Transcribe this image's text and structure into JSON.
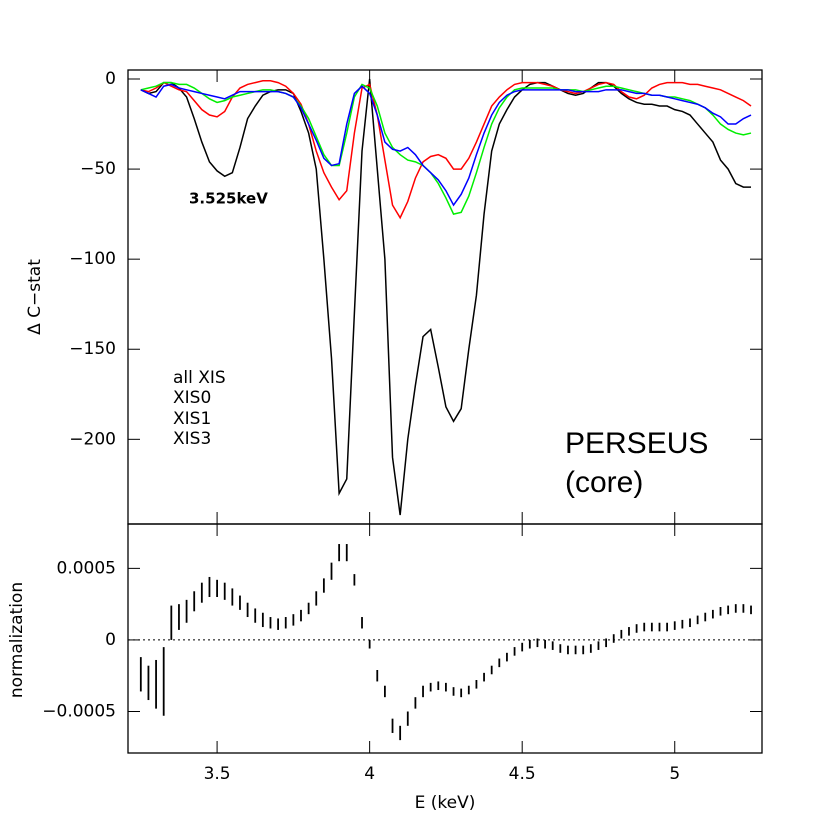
{
  "chart_data": [
    {
      "type": "line",
      "ylabel": "Δ C−stat",
      "annotations": [
        "3.525keV",
        "PERSEUS",
        "(core)"
      ],
      "xlim": [
        3.208,
        5.286
      ],
      "ylim": [
        -247,
        5
      ],
      "xticks": [
        3.5,
        4,
        4.5,
        5
      ],
      "yticks": [
        0,
        {
          "value": -50,
          "label": "−50"
        },
        {
          "value": -100,
          "label": "−100"
        },
        {
          "value": -150,
          "label": "−150"
        },
        {
          "value": -200,
          "label": "−200"
        }
      ],
      "legend": "lower left",
      "x": [
        3.25,
        3.275,
        3.3,
        3.325,
        3.35,
        3.375,
        3.4,
        3.425,
        3.45,
        3.475,
        3.5,
        3.525,
        3.55,
        3.575,
        3.6,
        3.625,
        3.65,
        3.675,
        3.7,
        3.725,
        3.75,
        3.775,
        3.8,
        3.825,
        3.85,
        3.875,
        3.9,
        3.925,
        3.95,
        3.975,
        4,
        4.025,
        4.05,
        4.075,
        4.1,
        4.125,
        4.15,
        4.175,
        4.2,
        4.225,
        4.25,
        4.275,
        4.3,
        4.325,
        4.35,
        4.375,
        4.4,
        4.425,
        4.45,
        4.475,
        4.5,
        4.525,
        4.55,
        4.575,
        4.6,
        4.625,
        4.65,
        4.675,
        4.7,
        4.725,
        4.75,
        4.775,
        4.8,
        4.825,
        4.85,
        4.875,
        4.9,
        4.925,
        4.95,
        4.975,
        5,
        5.025,
        5.05,
        5.075,
        5.1,
        5.125,
        5.15,
        5.175,
        5.2,
        5.225,
        5.25
      ],
      "series": [
        {
          "name": "all XIS",
          "color": "#000000",
          "values": [
            -6,
            -8,
            -7,
            -2,
            -2,
            -5,
            -10,
            -22,
            -35,
            -46,
            -51,
            -54,
            -52,
            -38,
            -22,
            -15,
            -9,
            -7,
            -6,
            -6,
            -8,
            -18,
            -30,
            -50,
            -100,
            -155,
            -230,
            -222,
            -130,
            -40,
            0,
            -50,
            -100,
            -210,
            -242,
            -200,
            -170,
            -143,
            -139,
            -160,
            -182,
            -190,
            -183,
            -150,
            -120,
            -75,
            -40,
            -25,
            -17,
            -10,
            -6,
            -3,
            -2,
            -2,
            -4,
            -6,
            -8,
            -9,
            -8,
            -5,
            -2,
            -2,
            -4,
            -8,
            -11,
            -13,
            -14,
            -14,
            -15,
            -15,
            -17,
            -18,
            -20,
            -25,
            -30,
            -35,
            -45,
            -50,
            -58,
            -60,
            -60
          ]
        },
        {
          "name": "XIS0",
          "color": "#ff0000",
          "values": [
            -6,
            -7,
            -5,
            -2,
            -4,
            -6,
            -7,
            -12,
            -17,
            -20,
            -21,
            -18,
            -10,
            -5,
            -3,
            -2,
            -1,
            -1,
            -2,
            -4,
            -8,
            -14,
            -25,
            -40,
            -52,
            -60,
            -67,
            -62,
            -30,
            -5,
            -3,
            -20,
            -45,
            -70,
            -77,
            -68,
            -55,
            -46,
            -43,
            -42,
            -44,
            -50,
            -50,
            -44,
            -35,
            -25,
            -15,
            -10,
            -6,
            -3,
            -2,
            -2,
            -2,
            -3,
            -4,
            -6,
            -7,
            -8,
            -7,
            -5,
            -3,
            -2,
            -3,
            -7,
            -10,
            -11,
            -9,
            -5,
            -3,
            -2,
            -2,
            -2,
            -3,
            -3,
            -4,
            -5,
            -6,
            -8,
            -10,
            -12,
            -15
          ]
        },
        {
          "name": "XIS1",
          "color": "#00ee00",
          "values": [
            -6,
            -5,
            -4,
            -2,
            -2,
            -3,
            -3,
            -5,
            -8,
            -11,
            -13,
            -12,
            -10,
            -9,
            -8,
            -7,
            -6,
            -6,
            -7,
            -8,
            -10,
            -15,
            -22,
            -32,
            -42,
            -48,
            -48,
            -30,
            -10,
            -3,
            -5,
            -15,
            -30,
            -38,
            -42,
            -45,
            -46,
            -48,
            -52,
            -58,
            -66,
            -75,
            -74,
            -65,
            -52,
            -38,
            -25,
            -16,
            -10,
            -6,
            -5,
            -5,
            -5,
            -5,
            -5,
            -6,
            -6,
            -6,
            -7,
            -6,
            -5,
            -4,
            -4,
            -5,
            -6,
            -7,
            -8,
            -9,
            -9,
            -10,
            -10,
            -11,
            -12,
            -14,
            -16,
            -20,
            -25,
            -28,
            -30,
            -31,
            -30
          ]
        },
        {
          "name": "XIS3",
          "color": "#0000ff",
          "values": [
            -6,
            -8,
            -10,
            -4,
            -3,
            -5,
            -6,
            -7,
            -8,
            -9,
            -10,
            -11,
            -9,
            -7,
            -7,
            -7,
            -7,
            -7,
            -7,
            -8,
            -10,
            -16,
            -25,
            -34,
            -44,
            -48,
            -47,
            -25,
            -8,
            -4,
            -8,
            -20,
            -35,
            -39,
            -40,
            -38,
            -42,
            -48,
            -52,
            -56,
            -62,
            -70,
            -64,
            -55,
            -42,
            -30,
            -20,
            -13,
            -9,
            -7,
            -6,
            -6,
            -6,
            -6,
            -6,
            -6,
            -6,
            -7,
            -7,
            -7,
            -7,
            -6,
            -6,
            -6,
            -7,
            -8,
            -8,
            -9,
            -9,
            -10,
            -11,
            -12,
            -13,
            -14,
            -16,
            -19,
            -21,
            -25,
            -25,
            -22,
            -20
          ]
        }
      ]
    },
    {
      "type": "errorbar",
      "xlabel": "E (keV)",
      "ylabel": "normalization",
      "xlim": [
        3.208,
        5.286
      ],
      "ylim": [
        -0.00079,
        0.00081
      ],
      "xticks": [
        3.5,
        4,
        4.5,
        5
      ],
      "yticks": [
        0.0005,
        0,
        {
          "value": -0.0005,
          "label": "−0.0005"
        }
      ],
      "reference_line": 0,
      "color": "#000000",
      "x": [
        3.25,
        3.275,
        3.3,
        3.325,
        3.35,
        3.375,
        3.4,
        3.425,
        3.45,
        3.475,
        3.5,
        3.525,
        3.55,
        3.575,
        3.6,
        3.625,
        3.65,
        3.675,
        3.7,
        3.725,
        3.75,
        3.775,
        3.8,
        3.825,
        3.85,
        3.875,
        3.9,
        3.925,
        3.95,
        3.975,
        4,
        4.025,
        4.05,
        4.075,
        4.1,
        4.125,
        4.15,
        4.175,
        4.2,
        4.225,
        4.25,
        4.275,
        4.3,
        4.325,
        4.35,
        4.375,
        4.4,
        4.425,
        4.45,
        4.475,
        4.5,
        4.525,
        4.55,
        4.575,
        4.6,
        4.625,
        4.65,
        4.675,
        4.7,
        4.725,
        4.75,
        4.775,
        4.8,
        4.825,
        4.85,
        4.875,
        4.9,
        4.925,
        4.95,
        4.975,
        5,
        5.025,
        5.05,
        5.075,
        5.1,
        5.125,
        5.15,
        5.175,
        5.2,
        5.225,
        5.25
      ],
      "values": [
        -0.00024,
        -0.0003,
        -0.00031,
        -0.00029,
        0.00012,
        0.00016,
        0.0002,
        0.00027,
        0.00033,
        0.00037,
        0.00036,
        0.00034,
        0.0003,
        0.00026,
        0.00021,
        0.00017,
        0.00014,
        0.00012,
        0.00011,
        0.00012,
        0.00014,
        0.00017,
        0.00022,
        0.00029,
        0.00038,
        0.00048,
        0.00061,
        0.00061,
        0.00042,
        0.00012,
        -3e-05,
        -0.00025,
        -0.00036,
        -0.0006,
        -0.00065,
        -0.00055,
        -0.00044,
        -0.00036,
        -0.00033,
        -0.00032,
        -0.00033,
        -0.00036,
        -0.00037,
        -0.00035,
        -0.00031,
        -0.00026,
        -0.00021,
        -0.00016,
        -0.00012,
        -8e-05,
        -5e-05,
        -3e-05,
        -2e-05,
        -3e-05,
        -4e-05,
        -6e-05,
        -7e-05,
        -7e-05,
        -7e-05,
        -6e-05,
        -4e-05,
        -2e-05,
        1e-05,
        4e-05,
        6e-05,
        8e-05,
        9e-05,
        9e-05,
        9e-05,
        9e-05,
        0.0001,
        0.00011,
        0.00012,
        0.00014,
        0.00016,
        0.00018,
        0.0002,
        0.00021,
        0.00022,
        0.00022,
        0.00021
      ],
      "errors": [
        0.00012,
        0.00012,
        0.00017,
        0.00024,
        0.00012,
        9e-05,
        8e-05,
        7e-05,
        7e-05,
        7e-05,
        6e-05,
        6e-05,
        6e-05,
        5e-05,
        5e-05,
        5e-05,
        5e-05,
        4e-05,
        4e-05,
        4e-05,
        4e-05,
        4e-05,
        4e-05,
        5e-05,
        5e-05,
        6e-05,
        6e-05,
        6e-05,
        4e-05,
        4e-05,
        3e-05,
        4e-05,
        4e-05,
        5e-05,
        5e-05,
        5e-05,
        4e-05,
        4e-05,
        3e-05,
        3e-05,
        3e-05,
        3e-05,
        3e-05,
        3e-05,
        3e-05,
        3e-05,
        3e-05,
        3e-05,
        3e-05,
        3e-05,
        3e-05,
        3e-05,
        3e-05,
        3e-05,
        3e-05,
        3e-05,
        3e-05,
        3e-05,
        3e-05,
        3e-05,
        3e-05,
        3e-05,
        3e-05,
        3e-05,
        3e-05,
        3e-05,
        3e-05,
        3e-05,
        3e-05,
        3e-05,
        3e-05,
        3e-05,
        3e-05,
        3e-05,
        3e-05,
        3e-05,
        3e-05,
        3e-05,
        3e-05,
        3e-05,
        3e-05
      ]
    }
  ]
}
